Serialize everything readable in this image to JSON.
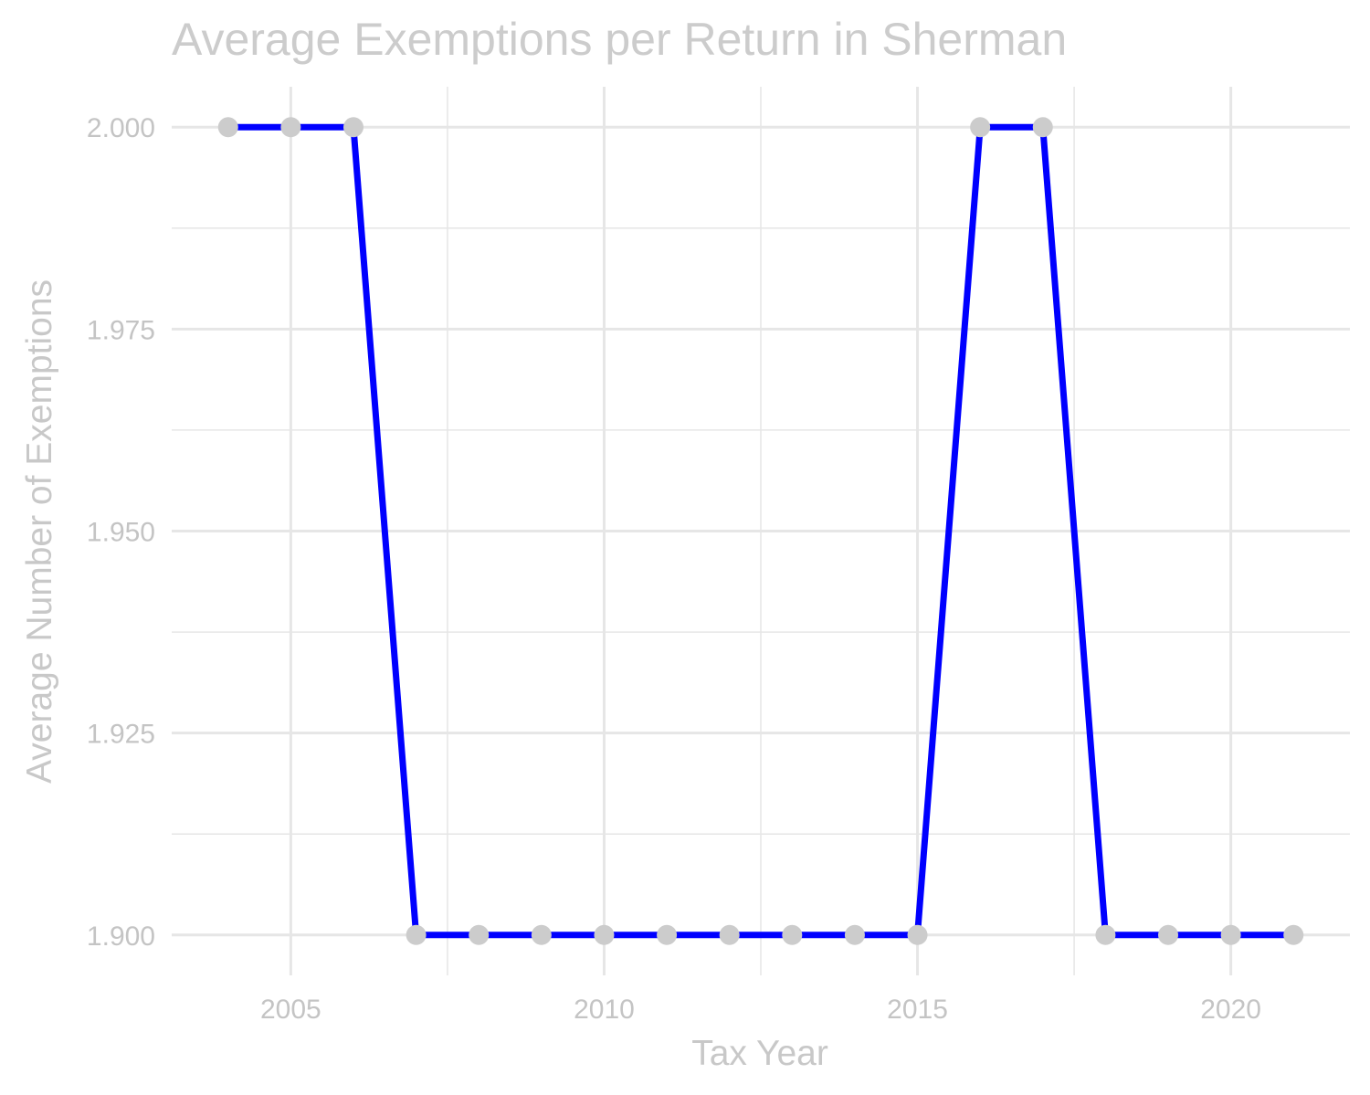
{
  "chart_data": {
    "type": "line",
    "title": "Average Exemptions per Return in Sherman",
    "xlabel": "Tax Year",
    "ylabel": "Average Number of Exemptions",
    "x": [
      2004,
      2005,
      2006,
      2007,
      2008,
      2009,
      2010,
      2011,
      2012,
      2013,
      2014,
      2015,
      2016,
      2017,
      2018,
      2019,
      2020,
      2021
    ],
    "series": [
      {
        "values": [
          2.0,
          2.0,
          2.0,
          1.9,
          1.9,
          1.9,
          1.9,
          1.9,
          1.9,
          1.9,
          1.9,
          1.9,
          2.0,
          2.0,
          1.9,
          1.9,
          1.9,
          1.9
        ]
      }
    ],
    "xticks": [
      "2005",
      "2010",
      "2015",
      "2020"
    ],
    "yticks": [
      "1.900",
      "1.925",
      "1.950",
      "1.975",
      "2.000"
    ],
    "xlim": [
      2003.1,
      2021.9
    ],
    "ylim": [
      1.895,
      2.005
    ],
    "grid": true,
    "colors": {
      "line": "#0000ff",
      "points": "#cccccc",
      "grid": "#e6e6e6",
      "text": "#c4c4c4"
    }
  }
}
